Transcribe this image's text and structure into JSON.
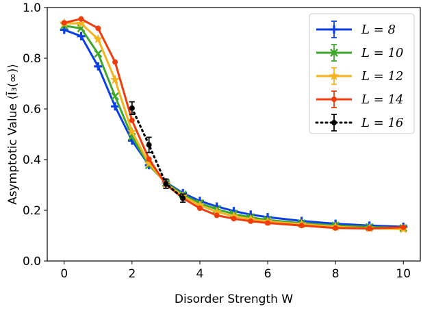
{
  "chart_data": {
    "type": "line",
    "xlabel": "Disorder Strength W",
    "ylabel": "Asymptotic Value ⟨Ĩ₃(∞)⟩",
    "xlim": [
      -0.5,
      10.5
    ],
    "ylim": [
      0.0,
      1.0
    ],
    "xticks": [
      0,
      2,
      4,
      6,
      8,
      10
    ],
    "yticks": [
      0.0,
      0.2,
      0.4,
      0.6,
      0.8,
      1.0
    ],
    "xtick_labels": [
      "0",
      "2",
      "4",
      "6",
      "8",
      "10"
    ],
    "ytick_labels": [
      "0.0",
      "0.2",
      "0.4",
      "0.6",
      "0.8",
      "1.0"
    ],
    "grid": false,
    "legend_position": "top-right",
    "series": [
      {
        "name": "L = 8",
        "color": "#0a3ee6",
        "marker": "plus",
        "linestyle": "solid",
        "x": [
          0,
          0.5,
          1,
          1.5,
          2,
          2.5,
          3,
          3.5,
          4,
          4.5,
          5,
          5.5,
          6,
          7,
          8,
          9,
          10
        ],
        "y": [
          0.912,
          0.887,
          0.768,
          0.61,
          0.475,
          0.378,
          0.31,
          0.268,
          0.237,
          0.215,
          0.197,
          0.183,
          0.173,
          0.158,
          0.147,
          0.14,
          0.135
        ]
      },
      {
        "name": "L = 10",
        "color": "#3da82a",
        "marker": "x",
        "linestyle": "solid",
        "x": [
          0,
          0.5,
          1,
          1.5,
          2,
          2.5,
          3,
          3.5,
          4,
          4.5,
          5,
          5.5,
          6,
          7,
          8,
          9,
          10
        ],
        "y": [
          0.928,
          0.918,
          0.818,
          0.65,
          0.49,
          0.378,
          0.308,
          0.262,
          0.228,
          0.204,
          0.186,
          0.172,
          0.162,
          0.149,
          0.14,
          0.134,
          0.13
        ]
      },
      {
        "name": "L = 12",
        "color": "#f5b31f",
        "marker": "star",
        "linestyle": "solid",
        "x": [
          0,
          0.5,
          1,
          1.5,
          2,
          2.5,
          3,
          3.5,
          4,
          4.5,
          5,
          5.5,
          6,
          7,
          8,
          9,
          10
        ],
        "y": [
          0.938,
          0.937,
          0.875,
          0.715,
          0.51,
          0.385,
          0.305,
          0.256,
          0.22,
          0.194,
          0.177,
          0.165,
          0.156,
          0.145,
          0.135,
          0.129,
          0.126
        ]
      },
      {
        "name": "L = 14",
        "color": "#f03c0a",
        "marker": "dot",
        "linestyle": "solid",
        "x": [
          0,
          0.5,
          1,
          1.5,
          2,
          2.5,
          3,
          3.5,
          4,
          4.5,
          5,
          5.5,
          6,
          7,
          8,
          9,
          10
        ],
        "y": [
          0.94,
          0.955,
          0.918,
          0.785,
          0.555,
          0.402,
          0.302,
          0.248,
          0.208,
          0.18,
          0.167,
          0.157,
          0.15,
          0.14,
          0.13,
          0.128,
          0.133
        ]
      },
      {
        "name": "L = 16",
        "color": "#000000",
        "marker": "dot",
        "linestyle": "dotted",
        "x": [
          2,
          2.5,
          3,
          3.5
        ],
        "y": [
          0.603,
          0.458,
          0.305,
          0.248
        ],
        "yerr": [
          0.025,
          0.03,
          0.018,
          0.016
        ]
      }
    ]
  }
}
